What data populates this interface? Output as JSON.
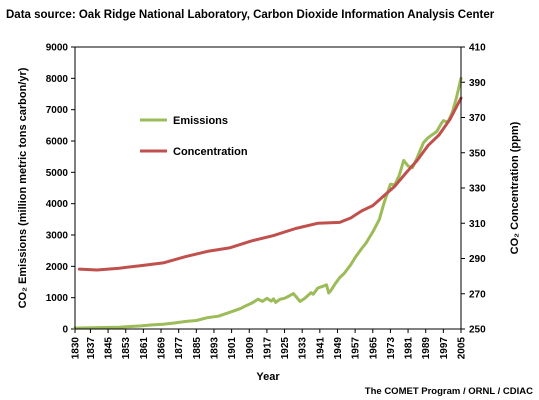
{
  "header": {
    "source_text": "Data source: Oak Ridge National Laboratory, Carbon Dioxide Information Analysis Center"
  },
  "footer": {
    "credit_text": "The COMET Program / ORNL / CDIAC"
  },
  "chart_data": {
    "type": "line",
    "title": "",
    "xlabel": "Year",
    "ylabel_left": "CO₂ Emissions (million metric tons carbon/yr)",
    "ylabel_right": "CO₂ Concentration (ppm)",
    "xlim": [
      1830,
      2005
    ],
    "ylim_left": [
      0,
      9000
    ],
    "ylim_right": [
      250,
      410
    ],
    "x_ticks": [
      1830,
      1837,
      1845,
      1853,
      1861,
      1869,
      1877,
      1885,
      1893,
      1901,
      1909,
      1917,
      1925,
      1933,
      1941,
      1949,
      1957,
      1965,
      1973,
      1981,
      1989,
      1997,
      2005
    ],
    "y_ticks_left": [
      0,
      1000,
      2000,
      3000,
      4000,
      5000,
      6000,
      7000,
      8000,
      9000
    ],
    "y_ticks_right": [
      250,
      270,
      290,
      310,
      330,
      350,
      370,
      390,
      410
    ],
    "grid": false,
    "legend_position": "upper-left inside plot",
    "series": [
      {
        "name": "Emissions",
        "axis": "left",
        "color": "#9cbb59",
        "points": [
          [
            1830,
            30
          ],
          [
            1840,
            45
          ],
          [
            1850,
            55
          ],
          [
            1855,
            80
          ],
          [
            1860,
            100
          ],
          [
            1865,
            130
          ],
          [
            1870,
            150
          ],
          [
            1875,
            190
          ],
          [
            1880,
            240
          ],
          [
            1885,
            270
          ],
          [
            1890,
            360
          ],
          [
            1895,
            410
          ],
          [
            1900,
            530
          ],
          [
            1905,
            650
          ],
          [
            1908,
            760
          ],
          [
            1910,
            820
          ],
          [
            1913,
            950
          ],
          [
            1915,
            880
          ],
          [
            1917,
            980
          ],
          [
            1919,
            890
          ],
          [
            1920,
            960
          ],
          [
            1921,
            850
          ],
          [
            1923,
            950
          ],
          [
            1925,
            980
          ],
          [
            1927,
            1050
          ],
          [
            1929,
            1130
          ],
          [
            1930,
            1050
          ],
          [
            1932,
            880
          ],
          [
            1934,
            970
          ],
          [
            1937,
            1160
          ],
          [
            1938,
            1110
          ],
          [
            1940,
            1300
          ],
          [
            1941,
            1330
          ],
          [
            1943,
            1380
          ],
          [
            1944,
            1410
          ],
          [
            1945,
            1150
          ],
          [
            1946,
            1230
          ],
          [
            1948,
            1450
          ],
          [
            1950,
            1640
          ],
          [
            1952,
            1770
          ],
          [
            1955,
            2050
          ],
          [
            1957,
            2280
          ],
          [
            1960,
            2570
          ],
          [
            1962,
            2750
          ],
          [
            1965,
            3100
          ],
          [
            1968,
            3500
          ],
          [
            1970,
            4000
          ],
          [
            1973,
            4620
          ],
          [
            1975,
            4600
          ],
          [
            1977,
            4900
          ],
          [
            1979,
            5380
          ],
          [
            1981,
            5200
          ],
          [
            1983,
            5150
          ],
          [
            1985,
            5450
          ],
          [
            1988,
            5950
          ],
          [
            1990,
            6100
          ],
          [
            1992,
            6200
          ],
          [
            1994,
            6300
          ],
          [
            1996,
            6550
          ],
          [
            1997,
            6650
          ],
          [
            1999,
            6600
          ],
          [
            2001,
            6900
          ],
          [
            2003,
            7400
          ],
          [
            2004,
            7700
          ],
          [
            2005,
            8000
          ]
        ]
      },
      {
        "name": "Concentration",
        "axis": "right",
        "color": "#c0504d",
        "points": [
          [
            1832,
            284
          ],
          [
            1840,
            283.5
          ],
          [
            1850,
            284.5
          ],
          [
            1860,
            286
          ],
          [
            1870,
            287.5
          ],
          [
            1880,
            291
          ],
          [
            1890,
            294
          ],
          [
            1900,
            296
          ],
          [
            1910,
            300
          ],
          [
            1920,
            303
          ],
          [
            1930,
            307
          ],
          [
            1940,
            310
          ],
          [
            1950,
            310.5
          ],
          [
            1955,
            313
          ],
          [
            1960,
            317
          ],
          [
            1965,
            320
          ],
          [
            1970,
            325.5
          ],
          [
            1975,
            331
          ],
          [
            1980,
            338.5
          ],
          [
            1985,
            345.5
          ],
          [
            1990,
            354
          ],
          [
            1995,
            360
          ],
          [
            2000,
            369
          ],
          [
            2005,
            381
          ]
        ]
      }
    ]
  }
}
